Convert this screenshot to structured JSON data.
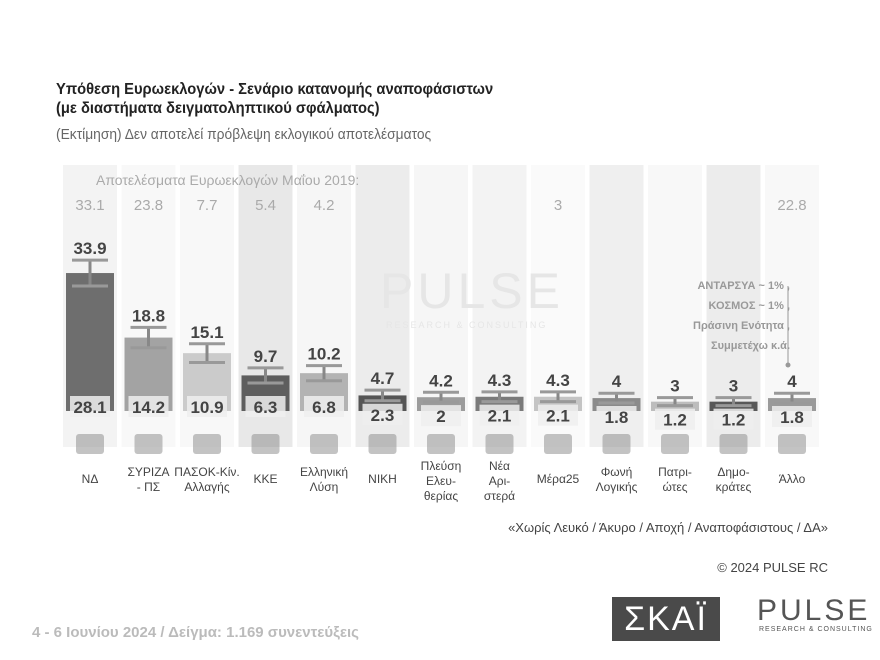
{
  "chart_data": {
    "type": "bar",
    "title": "Υπόθεση Ευρωεκλογών - Σενάριο κατανομής αναποφάσιστων",
    "title_line2": "(με διαστήματα δειγματοληπτικού σφάλματος)",
    "subtitle": "(Εκτίμηση)   Δεν αποτελεί πρόβλεψη εκλογικού αποτελέσματος",
    "previous_label": "Αποτελέσματα Ευρωεκλογών Μαΐου 2019:",
    "categories": [
      "ΝΔ",
      "ΣΥΡΙΖΑ - ΠΣ",
      "ΠΑΣΟΚ-Κίν. Αλλαγής",
      "ΚΚΕ",
      "Ελληνική Λύση",
      "ΝΙΚΗ",
      "Πλεύση Ελευ- θερίας",
      "Νέα Αρι- στερά",
      "Μέρα25",
      "Φωνή Λογικής",
      "Πατρι- ώτες",
      "Δημο- κράτες",
      "Άλλο"
    ],
    "high": [
      33.9,
      18.8,
      15.1,
      9.7,
      10.2,
      4.7,
      4.2,
      4.3,
      4.3,
      4,
      3,
      3,
      4
    ],
    "low": [
      28.1,
      14.2,
      10.9,
      6.3,
      6.8,
      2.3,
      2,
      2.1,
      2.1,
      1.8,
      1.2,
      1.2,
      1.8
    ],
    "previous_2019": [
      "33.1",
      "23.8",
      "7.7",
      "5.4",
      "4.2",
      "",
      "",
      "",
      "3",
      "",
      "",
      "",
      "22.8"
    ],
    "bar_colors": [
      "#6e6e6e",
      "#a3a3a3",
      "#cbcbcb",
      "#5e5e5e",
      "#b3b3b3",
      "#555555",
      "#9c9c9c",
      "#7a7a7a",
      "#c4c4c4",
      "#8a8a8a",
      "#bdbdbd",
      "#585858",
      "#9a9a9a"
    ],
    "annotation": [
      "ΑΝΤΑΡΣΥΑ ~ 1% ,",
      "ΚΟΣΜΟΣ ~ 1% ,",
      "Πράσινη Ενότητα ,",
      "Συμμετέχω   κ.ά."
    ]
  },
  "footer": {
    "note": "«Χωρίς Λευκό / Άκυρο / Αποχή / Αναποφάσιστους / ΔΑ»",
    "copyright": "© 2024 PULSE RC",
    "fieldwork": "4 - 6 Ιουνίου 2024  /  Δείγμα:  1.169 συνεντεύξεις"
  },
  "logos": {
    "skai": "ΣΚΑΪ",
    "pulse": "PULSE",
    "pulse_sub": "RESEARCH & CONSULTING"
  }
}
